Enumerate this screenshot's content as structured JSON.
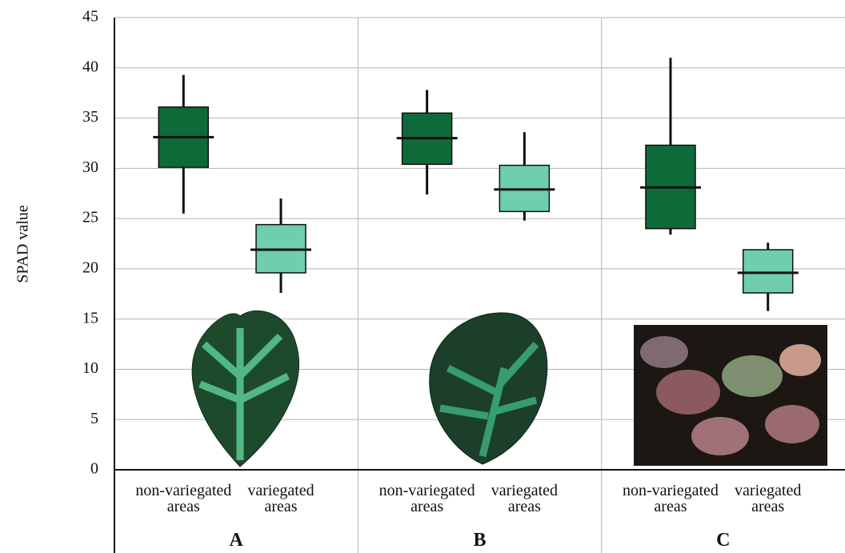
{
  "chart_data": {
    "type": "box",
    "y_label": "SPAD value",
    "categories": [
      "non-variegated areas",
      "variegated areas",
      "non-variegated areas",
      "variegated areas",
      "non-variegated areas",
      "variegated areas"
    ],
    "group_labels": [
      "A",
      "B",
      "C"
    ],
    "colors": [
      "#0f6a3a",
      "#6fceae",
      "#0f6a3a",
      "#6fceae",
      "#0f6a3a",
      "#6fceae"
    ],
    "boxes": [
      {
        "whisker_low": 25.5,
        "q1": 30.1,
        "median": 33.1,
        "q3": 36.1,
        "whisker_high": 39.3
      },
      {
        "whisker_low": 17.6,
        "q1": 19.6,
        "median": 21.9,
        "q3": 24.4,
        "whisker_high": 27.0
      },
      {
        "whisker_low": 27.4,
        "q1": 30.4,
        "median": 33.0,
        "q3": 35.5,
        "whisker_high": 37.8
      },
      {
        "whisker_low": 24.8,
        "q1": 25.7,
        "median": 27.9,
        "q3": 30.3,
        "whisker_high": 33.6
      },
      {
        "whisker_low": 23.4,
        "q1": 24.0,
        "median": 28.1,
        "q3": 32.3,
        "whisker_high": 41.0
      },
      {
        "whisker_low": 15.8,
        "q1": 17.6,
        "median": 19.6,
        "q3": 21.9,
        "whisker_high": 22.6
      }
    ],
    "ylim": [
      0,
      45
    ],
    "yticks": [
      0,
      5,
      10,
      15,
      20,
      25,
      30,
      35,
      40,
      45
    ],
    "grid": true
  }
}
